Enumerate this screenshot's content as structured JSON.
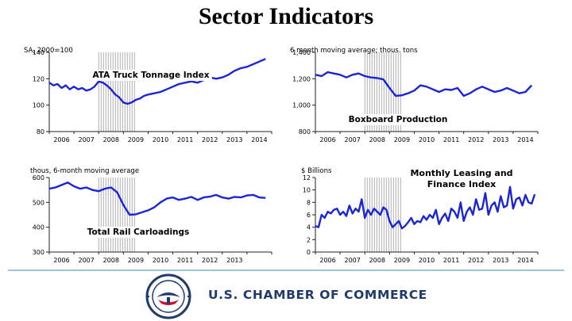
{
  "page_title": "Sector Indicators",
  "organization": "U.S. CHAMBER OF COMMERCE",
  "colors": {
    "line": "#1a24d8",
    "recession": "#999999",
    "axis": "#222222",
    "seal_blue": "#1f3a6b",
    "seal_red": "#c8102e"
  },
  "chart_data": [
    {
      "id": "truck",
      "type": "line",
      "title": "ATA Truck Tonnage Index",
      "unit_label": "SA, 2000=100",
      "ylim": [
        80,
        140
      ],
      "yticks": [
        80,
        100,
        120,
        140
      ],
      "ytick_labels": [
        "80",
        "100",
        "120",
        "140"
      ],
      "xlim": [
        2006,
        2015
      ],
      "xticks": [
        "2006",
        "2007",
        "2008",
        "2009",
        "2010",
        "2011",
        "2012",
        "2013",
        "2014"
      ],
      "recession": [
        2008.0,
        2009.5
      ],
      "series": [
        {
          "name": "ATA Truck Tonnage Index",
          "x": [
            2006.0,
            2006.17,
            2006.33,
            2006.5,
            2006.67,
            2006.83,
            2007.0,
            2007.17,
            2007.33,
            2007.5,
            2007.67,
            2007.83,
            2008.0,
            2008.17,
            2008.33,
            2008.5,
            2008.67,
            2008.83,
            2009.0,
            2009.17,
            2009.33,
            2009.5,
            2009.67,
            2009.83,
            2010.0,
            2010.25,
            2010.5,
            2010.75,
            2011.0,
            2011.25,
            2011.5,
            2011.75,
            2012.0,
            2012.25,
            2012.5,
            2012.75,
            2013.0,
            2013.25,
            2013.5,
            2013.75,
            2014.0,
            2014.25,
            2014.5,
            2014.75
          ],
          "values": [
            117,
            115,
            116,
            113,
            115,
            112,
            114,
            112,
            113,
            111,
            112,
            114,
            118,
            117,
            115,
            112,
            108,
            106,
            102,
            101,
            102,
            104,
            105,
            107,
            108,
            109,
            110,
            112,
            114,
            116,
            117,
            118,
            117,
            119,
            121,
            120,
            121,
            123,
            126,
            128,
            129,
            131,
            133,
            135
          ]
        }
      ]
    },
    {
      "id": "boxboard",
      "type": "line",
      "title": "Boxboard Production",
      "unit_label": "6 month moving average; thous. tons",
      "ylim": [
        800,
        1400
      ],
      "yticks": [
        800,
        1000,
        1200,
        1400
      ],
      "ytick_labels": [
        "800",
        "1,000",
        "1,200",
        "1,400"
      ],
      "xlim": [
        2006,
        2015
      ],
      "xticks": [
        "2006",
        "2007",
        "2008",
        "2009",
        "2010",
        "2011",
        "2012",
        "2013",
        "2014"
      ],
      "recession": [
        2008.0,
        2009.5
      ],
      "series": [
        {
          "name": "Boxboard Production",
          "x": [
            2006.0,
            2006.25,
            2006.5,
            2006.75,
            2007.0,
            2007.25,
            2007.5,
            2007.75,
            2008.0,
            2008.25,
            2008.5,
            2008.75,
            2009.0,
            2009.25,
            2009.5,
            2009.75,
            2010.0,
            2010.25,
            2010.5,
            2010.75,
            2011.0,
            2011.25,
            2011.5,
            2011.75,
            2012.0,
            2012.25,
            2012.5,
            2012.75,
            2013.0,
            2013.25,
            2013.5,
            2013.75,
            2014.0,
            2014.25,
            2014.5,
            2014.75
          ],
          "values": [
            1230,
            1220,
            1250,
            1240,
            1230,
            1210,
            1230,
            1240,
            1220,
            1210,
            1205,
            1195,
            1130,
            1070,
            1075,
            1090,
            1110,
            1150,
            1140,
            1120,
            1100,
            1120,
            1115,
            1130,
            1070,
            1090,
            1120,
            1140,
            1120,
            1100,
            1110,
            1130,
            1110,
            1090,
            1100,
            1150
          ]
        }
      ]
    },
    {
      "id": "rail",
      "type": "line",
      "title": "Total Rail Carloadings",
      "unit_label": "thous, 6-month moving average",
      "ylim": [
        300,
        600
      ],
      "yticks": [
        300,
        400,
        500,
        600
      ],
      "ytick_labels": [
        "300",
        "400",
        "500",
        "600"
      ],
      "xlim": [
        2006,
        2015
      ],
      "xticks": [
        "2006",
        "2007",
        "2008",
        "2009",
        "2010",
        "2011",
        "2012",
        "2013"
      ],
      "recession": [
        2008.0,
        2009.5
      ],
      "series": [
        {
          "name": "Total Rail Carloadings",
          "x": [
            2006.0,
            2006.25,
            2006.5,
            2006.75,
            2007.0,
            2007.25,
            2007.5,
            2007.75,
            2008.0,
            2008.25,
            2008.5,
            2008.75,
            2009.0,
            2009.25,
            2009.5,
            2009.75,
            2010.0,
            2010.25,
            2010.5,
            2010.75,
            2011.0,
            2011.25,
            2011.5,
            2011.75,
            2012.0,
            2012.25,
            2012.5,
            2012.75,
            2013.0,
            2013.25,
            2013.5,
            2013.75,
            2014.0,
            2014.25,
            2014.5,
            2014.75
          ],
          "values": [
            555,
            560,
            570,
            580,
            565,
            555,
            560,
            550,
            545,
            555,
            560,
            540,
            490,
            450,
            452,
            460,
            468,
            480,
            500,
            515,
            520,
            510,
            515,
            522,
            510,
            520,
            523,
            530,
            520,
            515,
            522,
            520,
            528,
            530,
            520,
            518
          ]
        }
      ]
    },
    {
      "id": "leasing",
      "type": "line",
      "title": "Monthly Leasing and Finance Index",
      "unit_label": "$ Billions",
      "ylim": [
        0,
        12
      ],
      "yticks": [
        0,
        2,
        4,
        6,
        8,
        10,
        12
      ],
      "ytick_labels": [
        "0",
        "2",
        "4",
        "6",
        "8",
        "10",
        "12"
      ],
      "xlim": [
        2006,
        2015
      ],
      "xticks": [
        "2006",
        "2007",
        "2008",
        "2009",
        "2010",
        "2011",
        "2012",
        "2013",
        "2014"
      ],
      "recession": [
        2008.0,
        2009.5
      ],
      "series": [
        {
          "name": "Monthly Leasing and Finance Index",
          "x": [
            2006.0,
            2006.125,
            2006.25,
            2006.375,
            2006.5,
            2006.625,
            2006.75,
            2006.875,
            2007.0,
            2007.125,
            2007.25,
            2007.375,
            2007.5,
            2007.625,
            2007.75,
            2007.875,
            2008.0,
            2008.125,
            2008.25,
            2008.375,
            2008.5,
            2008.625,
            2008.75,
            2008.875,
            2009.0,
            2009.125,
            2009.25,
            2009.375,
            2009.5,
            2009.625,
            2009.75,
            2009.875,
            2010.0,
            2010.125,
            2010.25,
            2010.375,
            2010.5,
            2010.625,
            2010.75,
            2010.875,
            2011.0,
            2011.125,
            2011.25,
            2011.375,
            2011.5,
            2011.625,
            2011.75,
            2011.875,
            2012.0,
            2012.125,
            2012.25,
            2012.375,
            2012.5,
            2012.625,
            2012.75,
            2012.875,
            2013.0,
            2013.125,
            2013.25,
            2013.375,
            2013.5,
            2013.625,
            2013.75,
            2013.875,
            2014.0,
            2014.125,
            2014.25,
            2014.375,
            2014.5,
            2014.625,
            2014.75,
            2014.875
          ],
          "values": [
            4.2,
            4.0,
            6.0,
            5.5,
            6.5,
            6.2,
            6.8,
            7.0,
            6.0,
            6.5,
            5.8,
            7.5,
            6.2,
            7.0,
            6.5,
            8.5,
            5.5,
            6.8,
            6.0,
            7.0,
            6.5,
            6.0,
            7.2,
            6.8,
            5.0,
            4.0,
            4.5,
            5.0,
            3.8,
            4.2,
            4.8,
            5.5,
            4.5,
            5.0,
            4.8,
            5.8,
            5.2,
            6.0,
            5.5,
            6.8,
            4.5,
            5.5,
            6.2,
            5.0,
            7.0,
            6.5,
            5.5,
            8.0,
            5.0,
            6.5,
            7.2,
            6.0,
            8.5,
            6.8,
            7.0,
            9.5,
            6.0,
            7.5,
            8.0,
            6.5,
            9.0,
            7.2,
            7.5,
            10.5,
            7.0,
            8.5,
            8.8,
            7.5,
            9.2,
            8.0,
            7.8,
            9.3
          ]
        }
      ]
    }
  ]
}
